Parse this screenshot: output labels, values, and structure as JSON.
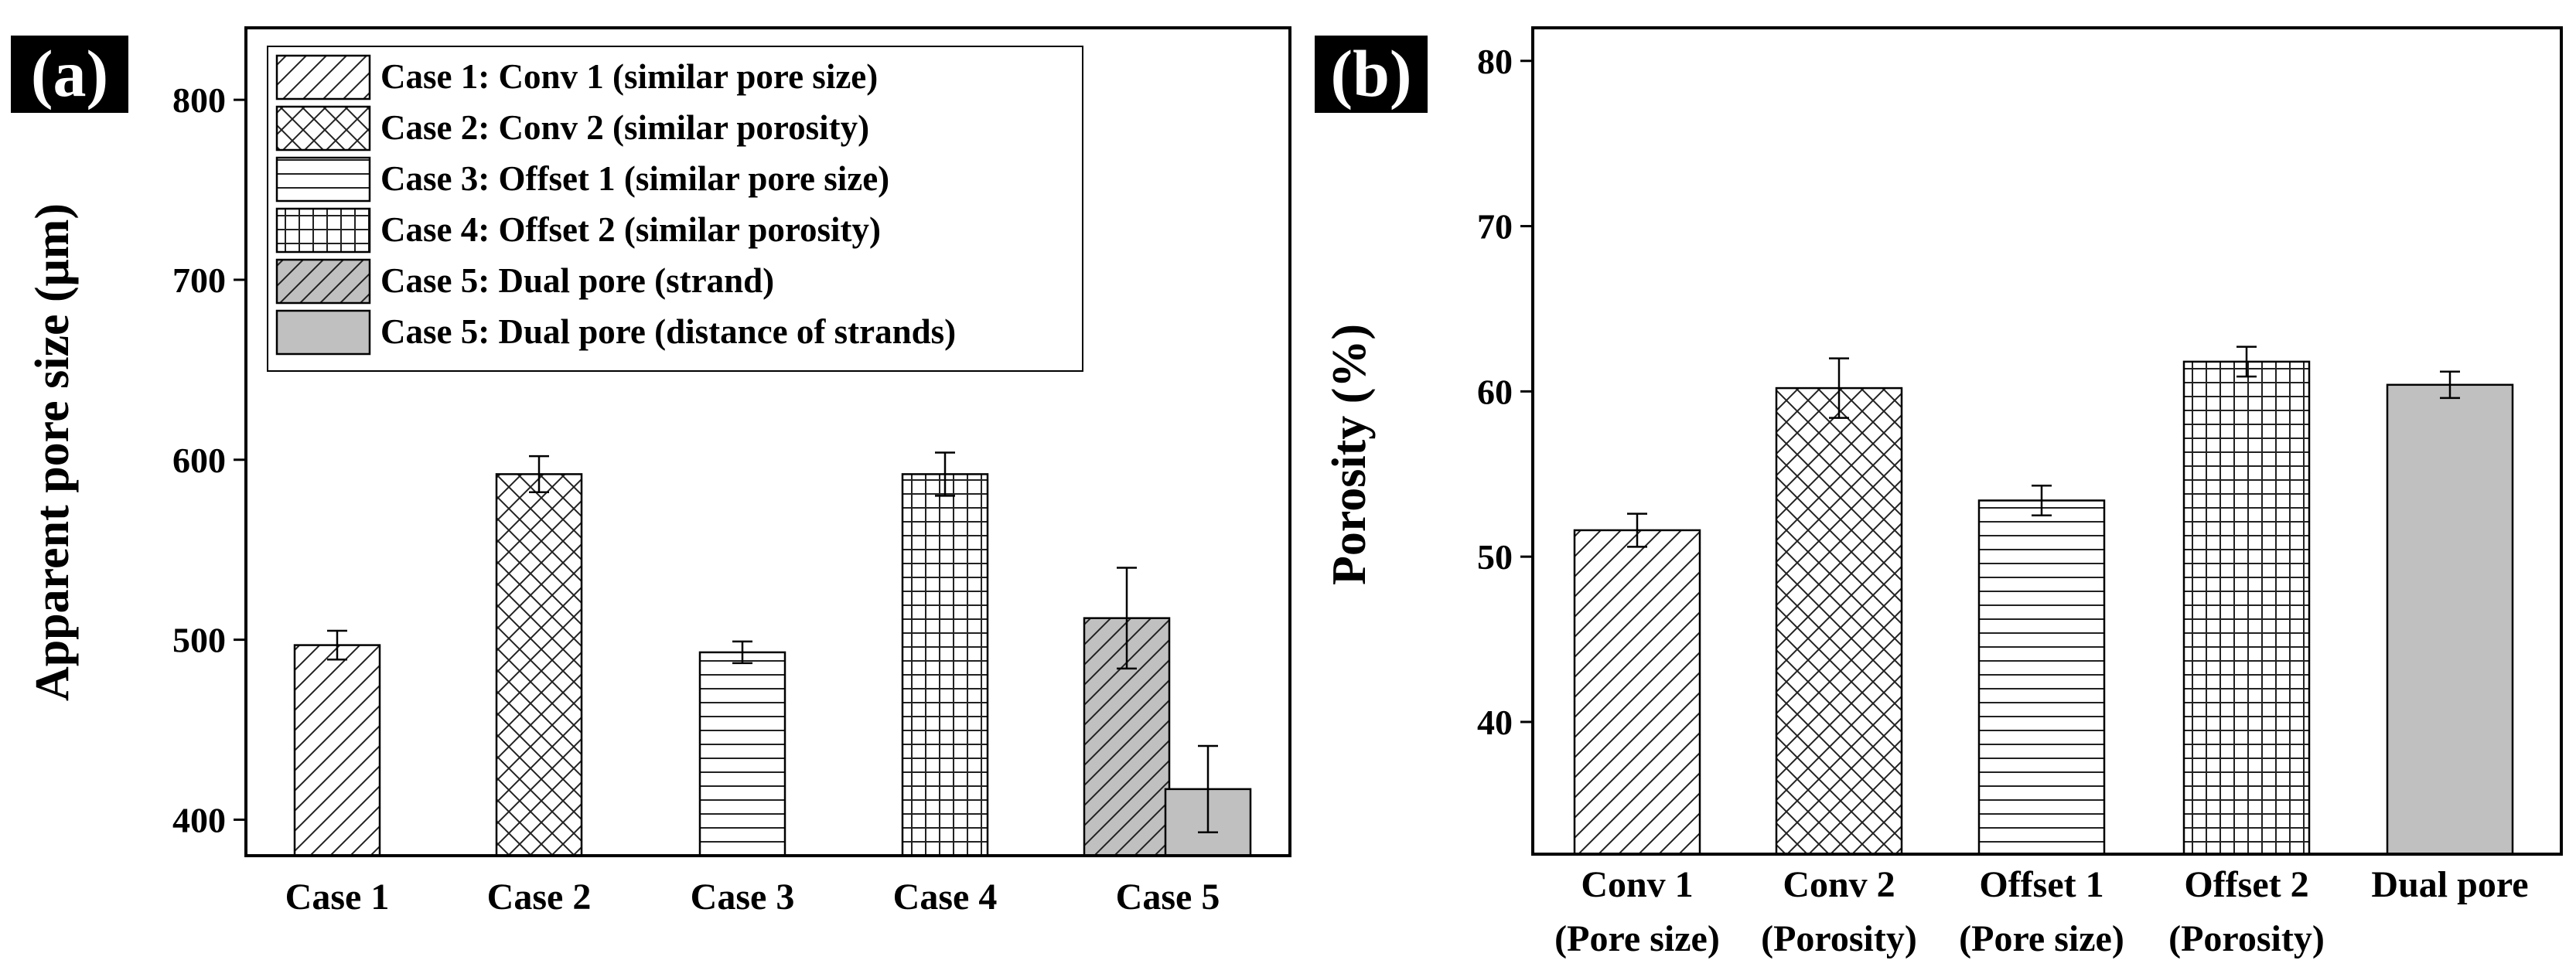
{
  "colors": {
    "frame": "#000000",
    "gray_fill": "#c0c0c0",
    "panel_label_bg": "#000000",
    "panel_label_text": "#ffffff",
    "background": "#ffffff"
  },
  "chart_data": [
    {
      "panel_label": "(a)",
      "type": "bar",
      "title": "",
      "xlabel": "",
      "ylabel": "Apparent pore size (μm)",
      "ylim": [
        380,
        840
      ],
      "yticks": [
        400,
        500,
        600,
        700,
        800
      ],
      "grid": false,
      "legend_position": "top-left",
      "categories": [
        "Case 1",
        "Case 2",
        "Case 3",
        "Case 4",
        "Case 5"
      ],
      "series": [
        {
          "name": "Case 1: Conv 1 (similar pore size)",
          "pattern": "diagonal",
          "category": "Case 1",
          "value": 497,
          "error": 8
        },
        {
          "name": "Case 2: Conv 2 (similar porosity)",
          "pattern": "crosshatch",
          "category": "Case 2",
          "value": 592,
          "error": 10
        },
        {
          "name": "Case 3: Offset 1 (similar pore size)",
          "pattern": "horizontal",
          "category": "Case 3",
          "value": 493,
          "error": 6
        },
        {
          "name": "Case 4: Offset 2 (similar porosity)",
          "pattern": "grid",
          "category": "Case 4",
          "value": 592,
          "error": 12
        },
        {
          "name": "Case 5: Dual pore (strand)",
          "pattern": "diagonal-gray",
          "category": "Case 5",
          "value": 512,
          "error": 28
        },
        {
          "name": "Case 5: Dual pore (distance of strands)",
          "pattern": "solid-gray",
          "category": "Case 5",
          "value": 417,
          "error": 24
        }
      ]
    },
    {
      "panel_label": "(b)",
      "type": "bar",
      "title": "",
      "xlabel": "",
      "ylabel": "Porosity (%)",
      "ylim": [
        32,
        82
      ],
      "yticks": [
        40,
        50,
        60,
        70,
        80
      ],
      "grid": false,
      "categories": [
        {
          "line1": "Conv 1",
          "line2": "(Pore size)"
        },
        {
          "line1": "Conv 2",
          "line2": "(Porosity)"
        },
        {
          "line1": "Offset 1",
          "line2": "(Pore size)"
        },
        {
          "line1": "Offset 2",
          "line2": "(Porosity)"
        },
        {
          "line1": "Dual pore",
          "line2": ""
        }
      ],
      "values": [
        51.6,
        60.2,
        53.4,
        61.8,
        60.4
      ],
      "errors": [
        1.0,
        1.8,
        0.9,
        0.9,
        0.8
      ],
      "patterns": [
        "diagonal",
        "crosshatch",
        "horizontal",
        "grid",
        "solid-gray"
      ]
    }
  ]
}
